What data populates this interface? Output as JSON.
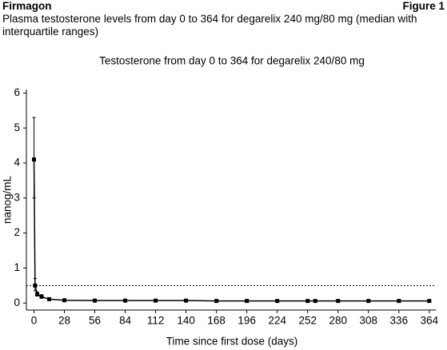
{
  "header": {
    "product": "Firmagon",
    "figure": "Figure 1",
    "subtitle": "Plasma testosterone levels from day 0 to 364 for degarelix 240 mg/80 mg (median with interquartile ranges)"
  },
  "chart_data": {
    "type": "line",
    "title": "Testosterone from day 0 to 364 for degarelix 240/80 mg",
    "x_label": "Time since first dose (days)",
    "y_label": "nanog/mL",
    "x": [
      0,
      1,
      3,
      7,
      14,
      28,
      56,
      84,
      112,
      140,
      168,
      196,
      224,
      252,
      259,
      280,
      308,
      336,
      364
    ],
    "series": [
      {
        "color": "#000000",
        "values": [
          4.1,
          0.5,
          0.25,
          0.18,
          0.11,
          0.08,
          0.07,
          0.07,
          0.07,
          0.07,
          0.06,
          0.06,
          0.06,
          0.06,
          0.06,
          0.06,
          0.06,
          0.06,
          0.06
        ],
        "q1": [
          3.0,
          0.35,
          0.2,
          0.14,
          0.09,
          0.06,
          0.05,
          0.05,
          0.05,
          0.05,
          0.05,
          0.05,
          0.05,
          0.05,
          0.05,
          0.05,
          0.05,
          0.05,
          0.04
        ],
        "q3": [
          5.3,
          0.7,
          0.32,
          0.24,
          0.14,
          0.1,
          0.09,
          0.09,
          0.09,
          0.09,
          0.08,
          0.08,
          0.08,
          0.08,
          0.08,
          0.08,
          0.08,
          0.08,
          0.08
        ]
      }
    ],
    "reference_line": 0.5,
    "xlim": [
      -7,
      370
    ],
    "ylim": [
      -0.2,
      6.1
    ],
    "xticks": [
      0,
      28,
      56,
      84,
      112,
      140,
      168,
      196,
      224,
      252,
      280,
      308,
      336,
      364
    ],
    "yticks": [
      0,
      1,
      2,
      3,
      4,
      5,
      6
    ]
  }
}
